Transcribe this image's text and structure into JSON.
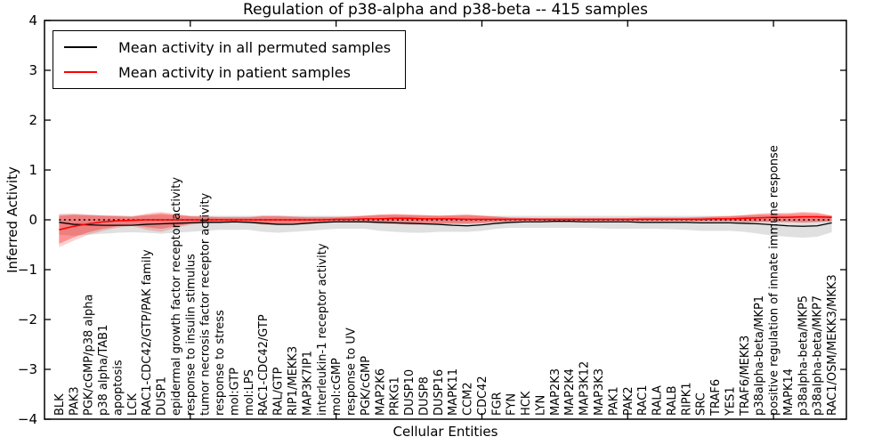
{
  "title": "Regulation of p38-alpha and p38-beta -- 415 samples",
  "legend": {
    "entries": [
      {
        "label": "Mean activity in all permuted samples",
        "color": "#000000"
      },
      {
        "label": "Mean activity in patient samples",
        "color": "#ff0000"
      }
    ]
  },
  "axes": {
    "ylabel": "Inferred Activity",
    "xlabel": "Cellular Entities"
  },
  "chart_data": {
    "type": "line",
    "title": "Regulation of p38-alpha and p38-beta -- 415 samples",
    "xlabel": "Cellular Entities",
    "ylabel": "Inferred Activity",
    "ylim": [
      -4,
      4
    ],
    "yticks": [
      4,
      3,
      2,
      1,
      0,
      -1,
      -2,
      -3,
      -4
    ],
    "xtick_units": [
      10,
      20,
      30,
      40,
      50
    ],
    "grid": false,
    "legend_position": "upper left",
    "zero_line": {
      "y": 0,
      "style": "dotted",
      "color": "#000000"
    },
    "categories": [
      "BLK",
      "PAK3",
      "PGK/cGMP/p38 alpha",
      "p38 alpha/TAB1",
      "apoptosis",
      "LCK",
      "RAC1-CDC42/GTP/PAK family",
      "DUSP1",
      "epidermal growth factor receptor activity",
      "response to insulin stimulus",
      "tumor necrosis factor receptor activity",
      "response to stress",
      "mol:GTP",
      "mol:LPS",
      "RAC1-CDC42/GTP",
      "RAL/GTP",
      "RIP1/MEKK3",
      "MAP3K7IP1",
      "interleukin-1 receptor activity",
      "mol:cGMP",
      "response to UV",
      "PGK/cGMP",
      "MAP2K6",
      "PRKG1",
      "DUSP10",
      "DUSP8",
      "DUSP16",
      "MAPK11",
      "CCM2",
      "CDC42",
      "FGR",
      "FYN",
      "HCK",
      "LYN",
      "MAP2K3",
      "MAP2K4",
      "MAP3K12",
      "MAP3K3",
      "PAK1",
      "PAK2",
      "RAC1",
      "RALA",
      "RALB",
      "RIPK1",
      "SRC",
      "TRAF6",
      "YES1",
      "TRAF6/MEKK3",
      "p38alpha-beta/MKP1",
      "positive regulation of innate immune response",
      "MAPK14",
      "p38alpha-beta/MKP5",
      "p38alpha-beta/MKP7",
      "RAC1/OSM/MEKK3/MKK3"
    ],
    "series": [
      {
        "name": "Mean activity in all permuted samples",
        "color": "#000000",
        "width": 1.3,
        "style": "solid",
        "values": [
          -0.05,
          -0.09,
          -0.1,
          -0.11,
          -0.11,
          -0.11,
          -0.09,
          -0.08,
          -0.07,
          -0.06,
          -0.05,
          -0.05,
          -0.04,
          -0.05,
          -0.07,
          -0.09,
          -0.09,
          -0.07,
          -0.05,
          -0.04,
          -0.04,
          -0.04,
          -0.05,
          -0.06,
          -0.07,
          -0.08,
          -0.09,
          -0.11,
          -0.12,
          -0.1,
          -0.07,
          -0.05,
          -0.04,
          -0.04,
          -0.03,
          -0.03,
          -0.04,
          -0.04,
          -0.04,
          -0.04,
          -0.05,
          -0.05,
          -0.05,
          -0.05,
          -0.06,
          -0.06,
          -0.06,
          -0.07,
          -0.08,
          -0.1,
          -0.12,
          -0.13,
          -0.12,
          -0.06
        ]
      },
      {
        "name": "Mean activity in patient samples",
        "color": "#ff0000",
        "width": 1.6,
        "style": "solid",
        "values": [
          -0.2,
          -0.13,
          -0.08,
          -0.04,
          -0.02,
          -0.01,
          0.0,
          0.0,
          0.0,
          0.0,
          0.0,
          0.0,
          0.0,
          0.0,
          0.0,
          0.0,
          0.0,
          0.0,
          0.0,
          0.01,
          0.01,
          0.02,
          0.02,
          0.03,
          0.03,
          0.02,
          0.02,
          0.02,
          0.01,
          0.01,
          0.01,
          0.01,
          0.01,
          0.01,
          0.01,
          0.01,
          0.01,
          0.01,
          0.01,
          0.01,
          0.01,
          0.01,
          0.01,
          0.01,
          0.01,
          0.02,
          0.02,
          0.03,
          0.04,
          0.05,
          0.05,
          0.06,
          0.06,
          0.05
        ]
      }
    ],
    "bands": [
      {
        "name": "permuted-samples-range",
        "color": "#000000",
        "opacity": 0.12,
        "hi": [
          0.1,
          0.11,
          0.1,
          0.09,
          0.09,
          0.08,
          0.09,
          0.1,
          0.09,
          0.08,
          0.08,
          0.08,
          0.08,
          0.08,
          0.09,
          0.09,
          0.08,
          0.08,
          0.08,
          0.08,
          0.08,
          0.08,
          0.09,
          0.09,
          0.09,
          0.08,
          0.08,
          0.08,
          0.08,
          0.08,
          0.08,
          0.08,
          0.08,
          0.08,
          0.08,
          0.08,
          0.08,
          0.08,
          0.08,
          0.08,
          0.08,
          0.08,
          0.08,
          0.08,
          0.08,
          0.08,
          0.08,
          0.08,
          0.09,
          0.09,
          0.09,
          0.09,
          0.09,
          0.08
        ],
        "lo": [
          -0.3,
          -0.32,
          -0.3,
          -0.28,
          -0.26,
          -0.25,
          -0.26,
          -0.28,
          -0.26,
          -0.24,
          -0.22,
          -0.2,
          -0.2,
          -0.2,
          -0.24,
          -0.26,
          -0.24,
          -0.22,
          -0.2,
          -0.18,
          -0.18,
          -0.18,
          -0.22,
          -0.24,
          -0.26,
          -0.26,
          -0.24,
          -0.24,
          -0.24,
          -0.22,
          -0.18,
          -0.16,
          -0.16,
          -0.16,
          -0.16,
          -0.16,
          -0.16,
          -0.17,
          -0.18,
          -0.18,
          -0.18,
          -0.18,
          -0.19,
          -0.2,
          -0.22,
          -0.22,
          -0.22,
          -0.24,
          -0.28,
          -0.32,
          -0.34,
          -0.36,
          -0.34,
          -0.25
        ]
      },
      {
        "name": "patient-samples-range-outer",
        "color": "#ff0000",
        "opacity": 0.18,
        "hi": [
          0.12,
          0.13,
          0.11,
          0.09,
          0.08,
          0.07,
          0.13,
          0.16,
          0.12,
          0.08,
          0.07,
          0.06,
          0.06,
          0.06,
          0.08,
          0.08,
          0.07,
          0.06,
          0.06,
          0.06,
          0.07,
          0.09,
          0.11,
          0.12,
          0.11,
          0.1,
          0.09,
          0.1,
          0.11,
          0.09,
          0.07,
          0.05,
          0.04,
          0.04,
          0.04,
          0.04,
          0.04,
          0.04,
          0.04,
          0.04,
          0.05,
          0.05,
          0.05,
          0.05,
          0.06,
          0.07,
          0.08,
          0.1,
          0.13,
          0.14,
          0.14,
          0.16,
          0.15,
          0.09
        ],
        "lo": [
          -0.55,
          -0.42,
          -0.3,
          -0.22,
          -0.16,
          -0.12,
          -0.2,
          -0.24,
          -0.16,
          -0.1,
          -0.07,
          -0.06,
          -0.06,
          -0.06,
          -0.1,
          -0.1,
          -0.08,
          -0.07,
          -0.06,
          -0.05,
          -0.05,
          -0.06,
          -0.08,
          -0.09,
          -0.1,
          -0.1,
          -0.09,
          -0.09,
          -0.09,
          -0.07,
          -0.05,
          -0.04,
          -0.03,
          -0.03,
          -0.03,
          -0.03,
          -0.03,
          -0.03,
          -0.03,
          -0.03,
          -0.03,
          -0.03,
          -0.03,
          -0.03,
          -0.04,
          -0.04,
          -0.04,
          -0.05,
          -0.05,
          -0.05,
          -0.05,
          -0.06,
          -0.05,
          -0.04
        ]
      },
      {
        "name": "patient-samples-range-inner",
        "color": "#ff0000",
        "opacity": 0.3,
        "hi": [
          0.08,
          0.1,
          0.09,
          0.08,
          0.07,
          0.06,
          0.1,
          0.13,
          0.1,
          0.07,
          0.06,
          0.05,
          0.05,
          0.05,
          0.07,
          0.07,
          0.06,
          0.05,
          0.05,
          0.05,
          0.06,
          0.08,
          0.1,
          0.11,
          0.1,
          0.09,
          0.08,
          0.09,
          0.1,
          0.08,
          0.06,
          0.04,
          0.04,
          0.03,
          0.03,
          0.03,
          0.03,
          0.03,
          0.03,
          0.03,
          0.04,
          0.04,
          0.04,
          0.04,
          0.05,
          0.06,
          0.07,
          0.09,
          0.11,
          0.12,
          0.12,
          0.14,
          0.13,
          0.08
        ],
        "lo": [
          -0.48,
          -0.35,
          -0.25,
          -0.18,
          -0.13,
          -0.1,
          -0.15,
          -0.18,
          -0.13,
          -0.08,
          -0.06,
          -0.05,
          -0.05,
          -0.05,
          -0.08,
          -0.08,
          -0.07,
          -0.06,
          -0.05,
          -0.04,
          -0.04,
          -0.05,
          -0.06,
          -0.07,
          -0.08,
          -0.08,
          -0.07,
          -0.07,
          -0.07,
          -0.06,
          -0.04,
          -0.03,
          -0.02,
          -0.02,
          -0.02,
          -0.02,
          -0.02,
          -0.02,
          -0.02,
          -0.02,
          -0.02,
          -0.02,
          -0.02,
          -0.02,
          -0.03,
          -0.03,
          -0.03,
          -0.04,
          -0.04,
          -0.04,
          -0.04,
          -0.05,
          -0.04,
          -0.03
        ]
      }
    ]
  }
}
